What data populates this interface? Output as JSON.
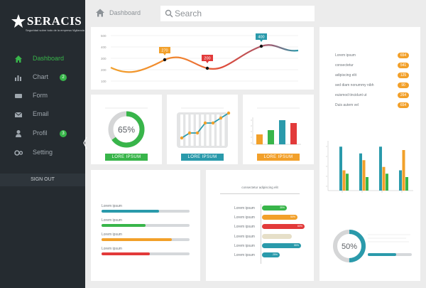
{
  "sidebar": {
    "brand": "SERACIS",
    "tagline": "Seguridad sobre todo de la empresa Vigilancia",
    "items": [
      {
        "label": "Dashboard",
        "icon": "home-icon",
        "active": true
      },
      {
        "label": "Chart",
        "icon": "bar-chart-icon",
        "badge": "2"
      },
      {
        "label": "Form",
        "icon": "form-icon"
      },
      {
        "label": "Email",
        "icon": "envelope-icon"
      },
      {
        "label": "Profil",
        "icon": "user-icon",
        "badge": "3"
      },
      {
        "label": "Setting",
        "icon": "gear-icon"
      }
    ],
    "signout_label": "SIGN OUT"
  },
  "topbar": {
    "breadcrumb": "Dashboard",
    "search_placeholder": "Search"
  },
  "colors": {
    "green": "#38b54a",
    "teal": "#2a9aab",
    "orange": "#f2a02a",
    "red": "#e23a3a",
    "sidebar": "#252b30"
  },
  "line_chart": {
    "chart_data": {
      "type": "line",
      "yticks": [
        "500",
        "400",
        "300",
        "200",
        "100"
      ],
      "callouts": [
        {
          "value": "270",
          "color": "#f2a02a"
        },
        {
          "value": "200",
          "color": "#e23a3a"
        },
        {
          "value": "400",
          "color": "#2a9aab"
        }
      ]
    }
  },
  "donut_card": {
    "percent": "65%",
    "value": 65,
    "button": "LORE IPSUM"
  },
  "mini_line_card": {
    "button": "LORE IPSUM",
    "points": [
      2,
      3,
      3,
      5,
      5,
      6,
      7
    ]
  },
  "mini_bar_card": {
    "button": "LORE IPSUM",
    "bars": [
      {
        "v": 35,
        "c": "#f2a02a"
      },
      {
        "v": 50,
        "c": "#38b54a"
      },
      {
        "v": 85,
        "c": "#2a9aab"
      },
      {
        "v": 75,
        "c": "#e23a3a"
      }
    ]
  },
  "right_list": [
    {
      "label": "Lorem ipsum",
      "value": "654"
    },
    {
      "label": "consectetur",
      "value": "541"
    },
    {
      "label": "adipiscing elit",
      "value": "125"
    },
    {
      "label": "sed diam nonummy nibh",
      "value": "90"
    },
    {
      "label": "euismod tincidunt ut",
      "value": "264"
    },
    {
      "label": "Duis autem vel",
      "value": "654"
    }
  ],
  "grouped_bars": {
    "groups": [
      {
        "teal": 65,
        "orange": 30,
        "green": 25
      },
      {
        "teal": 55,
        "orange": 45,
        "green": 20
      },
      {
        "teal": 65,
        "orange": 35,
        "green": 25
      },
      {
        "teal": 30,
        "orange": 60,
        "green": 20
      }
    ]
  },
  "progress_list": [
    {
      "label": "Lorem ipsum",
      "pct": 0.65,
      "color": "#2a9aab"
    },
    {
      "label": "Lorem ipsum",
      "pct": 0.5,
      "color": "#38b54a"
    },
    {
      "label": "Lorem ipsum",
      "pct": 0.8,
      "color": "#f2a02a"
    },
    {
      "label": "Lorem ipsum",
      "pct": 0.55,
      "color": "#e23a3a"
    }
  ],
  "hbar_chart": {
    "title": "consectetur adipiscing elit",
    "rows": [
      {
        "label": "Lorem ipsum",
        "pct": 0.35,
        "tag": "35%",
        "color": "#38b54a"
      },
      {
        "label": "Lorem ipsum",
        "pct": 0.5,
        "tag": "50%",
        "color": "#f2a02a"
      },
      {
        "label": "Lorem ipsum",
        "pct": 0.6,
        "tag": "60%",
        "color": "#e23a3a"
      },
      {
        "label": "Lorem ipsum",
        "pct": 0.42,
        "tag": "",
        "color": "#e6dfc8"
      },
      {
        "label": "Lorem ipsum",
        "pct": 0.55,
        "tag": "55%",
        "color": "#2a9aab"
      },
      {
        "label": "Lorem ipsum",
        "pct": 0.25,
        "tag": "25%",
        "color": "#2a9aab"
      }
    ]
  },
  "donut_50": {
    "percent": "50%",
    "value": 50
  }
}
